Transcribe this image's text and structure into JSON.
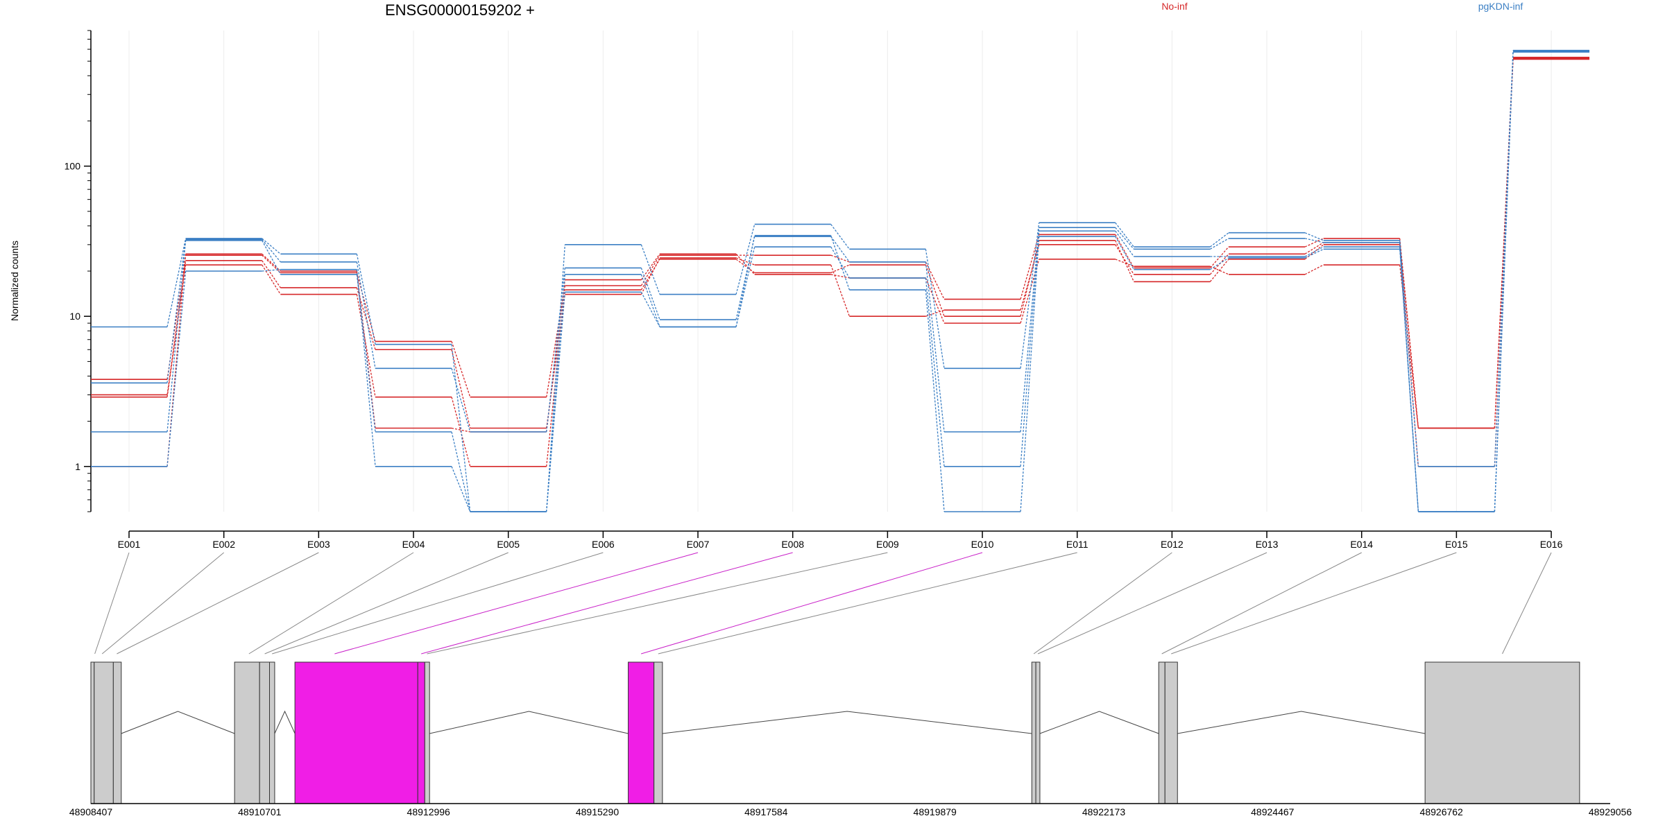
{
  "chart_data": {
    "type": "line",
    "title": "ENSG00000159202 +",
    "ylabel": "Normalized counts",
    "y_scale": "log",
    "yticks": [
      1,
      10,
      100
    ],
    "ytick_labels": [
      "1",
      "10",
      "100"
    ],
    "y_range": [
      0.5,
      800
    ],
    "categories": [
      "E001",
      "E002",
      "E003",
      "E004",
      "E005",
      "E006",
      "E007",
      "E008",
      "E009",
      "E010",
      "E011",
      "E012",
      "E013",
      "E014",
      "E015",
      "E016"
    ],
    "legend": [
      {
        "label": "No-inf",
        "color": "#d62728"
      },
      {
        "label": "pgKDN-inf",
        "color": "#3b7fc4"
      }
    ],
    "series": [
      {
        "group": "No-inf",
        "color": "#d62728",
        "values": [
          3.8,
          25.5,
          19.5,
          6.8,
          2.9,
          16.0,
          25.5,
          25.5,
          23.0,
          13.0,
          35.0,
          21.0,
          29.0,
          33.0,
          1.8,
          530
        ]
      },
      {
        "group": "No-inf",
        "color": "#d62728",
        "values": [
          3.0,
          23.5,
          15.5,
          6.0,
          1.8,
          14.0,
          24.5,
          22.0,
          10.0,
          11.0,
          30.0,
          19.0,
          26.0,
          31.0,
          1.8,
          520
        ]
      },
      {
        "group": "No-inf",
        "color": "#d62728",
        "values": [
          2.9,
          22.0,
          14.0,
          2.9,
          1.0,
          15.0,
          24.0,
          19.5,
          22.0,
          10.0,
          32.0,
          17.0,
          24.0,
          30.0,
          1.0,
          515
        ]
      },
      {
        "group": "No-inf",
        "color": "#d62728",
        "values": [
          1.0,
          26.0,
          20.0,
          1.8,
          1.7,
          17.5,
          26.0,
          19.0,
          18.0,
          9.0,
          24.0,
          21.5,
          19.0,
          22.0,
          1.8,
          525
        ]
      },
      {
        "group": "pgKDN-inf",
        "color": "#3b7fc4",
        "values": [
          8.5,
          33.0,
          26.0,
          6.5,
          0.5,
          30.0,
          14.0,
          41.0,
          28.0,
          4.5,
          42.0,
          29.0,
          36.0,
          32.0,
          1.0,
          590
        ]
      },
      {
        "group": "pgKDN-inf",
        "color": "#3b7fc4",
        "values": [
          3.6,
          32.5,
          23.0,
          4.5,
          1.7,
          21.0,
          9.5,
          34.0,
          23.0,
          1.7,
          39.0,
          28.0,
          33.0,
          31.0,
          0.5,
          585
        ]
      },
      {
        "group": "pgKDN-inf",
        "color": "#3b7fc4",
        "values": [
          1.7,
          32.0,
          19.0,
          1.7,
          0.5,
          19.0,
          8.5,
          29.0,
          18.0,
          1.0,
          37.0,
          25.0,
          25.0,
          29.0,
          0.5,
          580
        ]
      },
      {
        "group": "pgKDN-inf",
        "color": "#3b7fc4",
        "values": [
          1.0,
          20.0,
          20.5,
          1.0,
          0.5,
          14.5,
          8.5,
          34.5,
          15.0,
          0.5,
          34.0,
          20.5,
          24.5,
          28.0,
          0.5,
          575
        ]
      }
    ],
    "genomic_axis": {
      "start": 48908407,
      "end": 48929056,
      "tick_labels": [
        "48908407",
        "48910701",
        "48912996",
        "48915290",
        "48917584",
        "48919879",
        "48922173",
        "48924467",
        "48926762",
        "48929056"
      ],
      "ticks": [
        48908407,
        48910701,
        48912996,
        48915290,
        48917584,
        48919879,
        48922173,
        48924467,
        48926762,
        48929056
      ]
    },
    "exon_blocks": [
      {
        "start": 48908407,
        "end": 48908452,
        "fill": "#cccccc"
      },
      {
        "start": 48908452,
        "end": 48908712,
        "fill": "#cccccc"
      },
      {
        "start": 48908712,
        "end": 48908820,
        "fill": "#cccccc"
      },
      {
        "start": 48910360,
        "end": 48910700,
        "fill": "#cccccc"
      },
      {
        "start": 48910700,
        "end": 48910835,
        "fill": "#cccccc"
      },
      {
        "start": 48910835,
        "end": 48910905,
        "fill": "#cccccc"
      },
      {
        "start": 48911180,
        "end": 48912850,
        "fill": "#f01ee6"
      },
      {
        "start": 48912850,
        "end": 48912945,
        "fill": "#f01ee6"
      },
      {
        "start": 48912945,
        "end": 48913010,
        "fill": "#cccccc"
      },
      {
        "start": 48915710,
        "end": 48916060,
        "fill": "#f01ee6"
      },
      {
        "start": 48916060,
        "end": 48916175,
        "fill": "#cccccc"
      },
      {
        "start": 48921195,
        "end": 48921250,
        "fill": "#cccccc"
      },
      {
        "start": 48921250,
        "end": 48921305,
        "fill": "#cccccc"
      },
      {
        "start": 48922920,
        "end": 48923005,
        "fill": "#cccccc"
      },
      {
        "start": 48923005,
        "end": 48923175,
        "fill": "#cccccc"
      },
      {
        "start": 48926540,
        "end": 48928640,
        "fill": "#cccccc"
      }
    ],
    "introns": [
      {
        "from": 48908820,
        "to": 48910360
      },
      {
        "from": 48910905,
        "to": 48911180
      },
      {
        "from": 48913010,
        "to": 48915710
      },
      {
        "from": 48916175,
        "to": 48921195
      },
      {
        "from": 48921305,
        "to": 48922920
      },
      {
        "from": 48923175,
        "to": 48926540
      }
    ],
    "exon_links": [
      {
        "exon": "E001",
        "pos": 48908460,
        "highlight": false
      },
      {
        "exon": "E002",
        "pos": 48908560,
        "highlight": false
      },
      {
        "exon": "E003",
        "pos": 48908760,
        "highlight": false
      },
      {
        "exon": "E004",
        "pos": 48910555,
        "highlight": false
      },
      {
        "exon": "E005",
        "pos": 48910770,
        "highlight": false
      },
      {
        "exon": "E006",
        "pos": 48910870,
        "highlight": false
      },
      {
        "exon": "E007",
        "pos": 48911720,
        "highlight": true
      },
      {
        "exon": "E008",
        "pos": 48912897,
        "highlight": true
      },
      {
        "exon": "E009",
        "pos": 48912975,
        "highlight": false
      },
      {
        "exon": "E010",
        "pos": 48915885,
        "highlight": true
      },
      {
        "exon": "E011",
        "pos": 48916118,
        "highlight": false
      },
      {
        "exon": "E012",
        "pos": 48921222,
        "highlight": false
      },
      {
        "exon": "E013",
        "pos": 48921278,
        "highlight": false
      },
      {
        "exon": "E014",
        "pos": 48922962,
        "highlight": false
      },
      {
        "exon": "E015",
        "pos": 48923090,
        "highlight": false
      },
      {
        "exon": "E016",
        "pos": 48927590,
        "highlight": false
      }
    ]
  }
}
